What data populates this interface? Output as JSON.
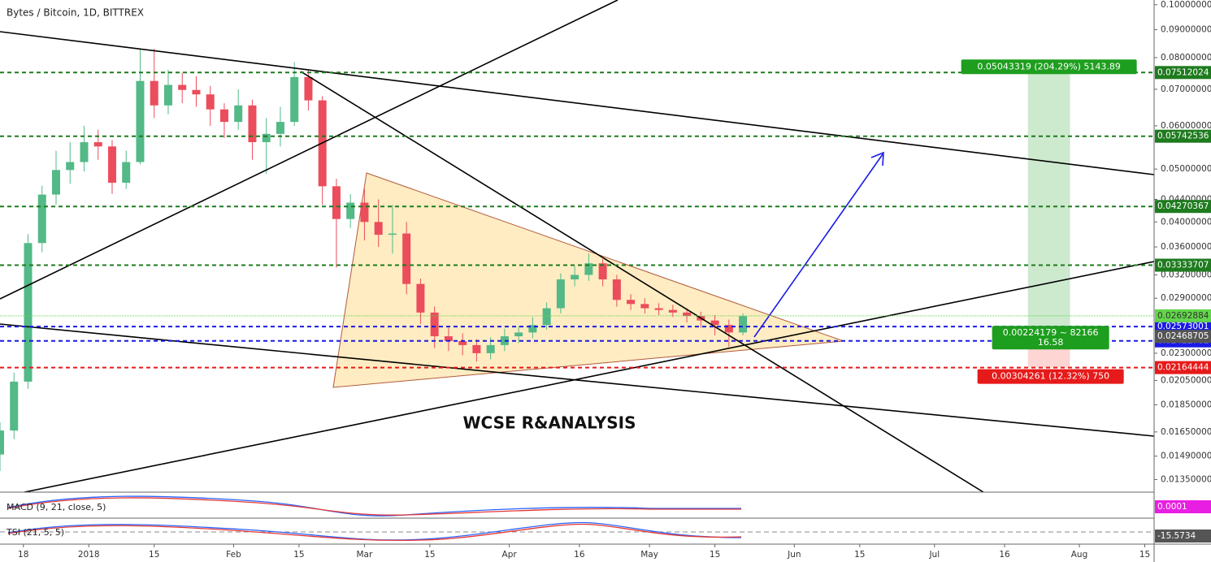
{
  "chart_data": {
    "type": "candlestick",
    "title": "Bytes / Bitcoin, 1D, BITTREX",
    "watermark": "WCSE R&ANALYSIS",
    "log_scale": true,
    "grid": false,
    "up_color": "#53b987",
    "down_color": "#eb4d5c",
    "xlim": [
      "2017-12-13",
      "2018-08-17"
    ],
    "xticks": [
      {
        "value": "2017-12-18",
        "label": "18"
      },
      {
        "value": "2018-01-01",
        "label": "2018"
      },
      {
        "value": "2018-01-15",
        "label": "15"
      },
      {
        "value": "2018-02-01",
        "label": "Feb"
      },
      {
        "value": "2018-02-15",
        "label": "15"
      },
      {
        "value": "2018-03-01",
        "label": "Mar"
      },
      {
        "value": "2018-03-15",
        "label": "15"
      },
      {
        "value": "2018-04-01",
        "label": "Apr"
      },
      {
        "value": "2018-04-16",
        "label": "16"
      },
      {
        "value": "2018-05-01",
        "label": "May"
      },
      {
        "value": "2018-05-15",
        "label": "15"
      },
      {
        "value": "2018-06-01",
        "label": "Jun"
      },
      {
        "value": "2018-06-15",
        "label": "15"
      },
      {
        "value": "2018-07-01",
        "label": "Jul"
      },
      {
        "value": "2018-07-16",
        "label": "16"
      },
      {
        "value": "2018-08-01",
        "label": "Aug"
      },
      {
        "value": "2018-08-15",
        "label": "15"
      }
    ],
    "ylim": [
      0.0128,
      0.102
    ],
    "yticks": [
      {
        "value": 0.1,
        "label": "0.10000000"
      },
      {
        "value": 0.09,
        "label": "0.09000000"
      },
      {
        "value": 0.08,
        "label": "0.08000000"
      },
      {
        "value": 0.07,
        "label": "0.07000000"
      },
      {
        "value": 0.06,
        "label": "0.06000000"
      },
      {
        "value": 0.05,
        "label": "0.05000000"
      },
      {
        "value": 0.044,
        "label": "0.04400000"
      },
      {
        "value": 0.04,
        "label": "0.04000000"
      },
      {
        "value": 0.036,
        "label": "0.03600000"
      },
      {
        "value": 0.032,
        "label": "0.03200000"
      },
      {
        "value": 0.029,
        "label": "0.02900000"
      },
      {
        "value": 0.023,
        "label": "0.02300000"
      },
      {
        "value": 0.0205,
        "label": "0.02050000"
      },
      {
        "value": 0.0185,
        "label": "0.01850000"
      },
      {
        "value": 0.0165,
        "label": "0.01650000"
      },
      {
        "value": 0.0149,
        "label": "0.01490000"
      },
      {
        "value": 0.0135,
        "label": "0.01350000"
      }
    ],
    "x": [
      "2017-12-13",
      "2017-12-16",
      "2017-12-19",
      "2017-12-22",
      "2017-12-25",
      "2017-12-28",
      "2017-12-31",
      "2018-01-03",
      "2018-01-06",
      "2018-01-09",
      "2018-01-12",
      "2018-01-15",
      "2018-01-18",
      "2018-01-21",
      "2018-01-24",
      "2018-01-27",
      "2018-01-30",
      "2018-02-02",
      "2018-02-05",
      "2018-02-08",
      "2018-02-11",
      "2018-02-14",
      "2018-02-17",
      "2018-02-20",
      "2018-02-23",
      "2018-02-26",
      "2018-03-01",
      "2018-03-04",
      "2018-03-07",
      "2018-03-10",
      "2018-03-13",
      "2018-03-16",
      "2018-03-19",
      "2018-03-22",
      "2018-03-25",
      "2018-03-28",
      "2018-03-31",
      "2018-04-03",
      "2018-04-06",
      "2018-04-09",
      "2018-04-12",
      "2018-04-15",
      "2018-04-18",
      "2018-04-21",
      "2018-04-24",
      "2018-04-27",
      "2018-04-30",
      "2018-05-03",
      "2018-05-06",
      "2018-05-09",
      "2018-05-12",
      "2018-05-15",
      "2018-05-18",
      "2018-05-21"
    ],
    "open": [
      0.015,
      0.0166,
      0.0204,
      0.0366,
      0.0449,
      0.0498,
      0.0515,
      0.056,
      0.055,
      0.0472,
      0.0515,
      0.0725,
      0.0654,
      0.0713,
      0.0698,
      0.0685,
      0.0643,
      0.061,
      0.0654,
      0.056,
      0.058,
      0.061,
      0.0737,
      0.0668,
      0.0465,
      0.0405,
      0.0434,
      0.04,
      0.0379,
      0.0381,
      0.0308,
      0.0273,
      0.0247,
      0.0242,
      0.0238,
      0.023,
      0.0238,
      0.0247,
      0.0251,
      0.0259,
      0.0278,
      0.0314,
      0.032,
      0.0336,
      0.0314,
      0.0288,
      0.0283,
      0.0278,
      0.0276,
      0.0273,
      0.0269,
      0.0264,
      0.0259,
      0.0251
    ],
    "high": [
      0.0172,
      0.0212,
      0.038,
      0.0466,
      0.054,
      0.056,
      0.06,
      0.059,
      0.0565,
      0.054,
      0.083,
      0.083,
      0.076,
      0.075,
      0.074,
      0.071,
      0.066,
      0.07,
      0.067,
      0.062,
      0.065,
      0.0785,
      0.076,
      0.068,
      0.048,
      0.045,
      0.046,
      0.044,
      0.043,
      0.04,
      0.0315,
      0.028,
      0.0256,
      0.025,
      0.0244,
      0.0246,
      0.0255,
      0.0258,
      0.0268,
      0.0285,
      0.0322,
      0.0332,
      0.035,
      0.0342,
      0.032,
      0.0295,
      0.029,
      0.0284,
      0.0282,
      0.0278,
      0.0274,
      0.027,
      0.0265,
      0.0272
    ],
    "low": [
      0.014,
      0.016,
      0.0198,
      0.0352,
      0.043,
      0.047,
      0.0495,
      0.052,
      0.045,
      0.046,
      0.051,
      0.062,
      0.063,
      0.066,
      0.065,
      0.06,
      0.057,
      0.059,
      0.052,
      0.049,
      0.055,
      0.06,
      0.064,
      0.043,
      0.033,
      0.039,
      0.037,
      0.036,
      0.035,
      0.0295,
      0.026,
      0.0235,
      0.0232,
      0.0228,
      0.0222,
      0.0224,
      0.0232,
      0.024,
      0.0245,
      0.0254,
      0.0272,
      0.0305,
      0.0312,
      0.0305,
      0.028,
      0.0276,
      0.0272,
      0.027,
      0.0268,
      0.0262,
      0.0256,
      0.0248,
      0.0236,
      0.0248
    ],
    "close": [
      0.0166,
      0.0204,
      0.0366,
      0.0449,
      0.0498,
      0.0515,
      0.056,
      0.055,
      0.0472,
      0.0515,
      0.0725,
      0.0654,
      0.0713,
      0.0698,
      0.0685,
      0.0643,
      0.061,
      0.0654,
      0.056,
      0.058,
      0.061,
      0.0737,
      0.0668,
      0.0465,
      0.0405,
      0.0434,
      0.04,
      0.0379,
      0.0381,
      0.0308,
      0.0273,
      0.0247,
      0.0242,
      0.0238,
      0.023,
      0.0238,
      0.0247,
      0.0251,
      0.0259,
      0.0278,
      0.0314,
      0.032,
      0.0336,
      0.0314,
      0.0288,
      0.0283,
      0.0278,
      0.0276,
      0.0273,
      0.0269,
      0.0264,
      0.0259,
      0.0251,
      0.0269
    ],
    "levels": [
      {
        "value": 0.07512024,
        "color": "#1e7b1e"
      },
      {
        "value": 0.05742536,
        "color": "#1e7b1e"
      },
      {
        "value": 0.04270367,
        "color": "#1e7b1e"
      },
      {
        "value": 0.03333707,
        "color": "#1e7b1e"
      },
      {
        "value": 0.02573001,
        "color": "#1a1ae6"
      },
      {
        "value": 0.02422782,
        "color": "#1a1ae6"
      },
      {
        "value": 0.02164444,
        "color": "#e61a1a"
      }
    ],
    "last_price": {
      "value": 0.02692884,
      "color": "#62d64a"
    },
    "position": {
      "entry": 0.02468705,
      "target": 0.07512024,
      "stop": 0.02164444,
      "start": "2018-07-21",
      "end": "2018-07-30",
      "target_label": "0.05043319 (204.29%) 5143.89",
      "mid_label": "0.00224179 ~ 82166",
      "ratio_label": "16.58",
      "stop_label": "0.00304261 (12.32%) 750"
    },
    "indicators": [
      {
        "name": "MACD (9, 21, close, 5)",
        "value": 0.0001,
        "color": "#e91ee3"
      },
      {
        "name": "TSI (21, 5, 5)",
        "value": -15.5734,
        "color": "#555555"
      }
    ]
  }
}
